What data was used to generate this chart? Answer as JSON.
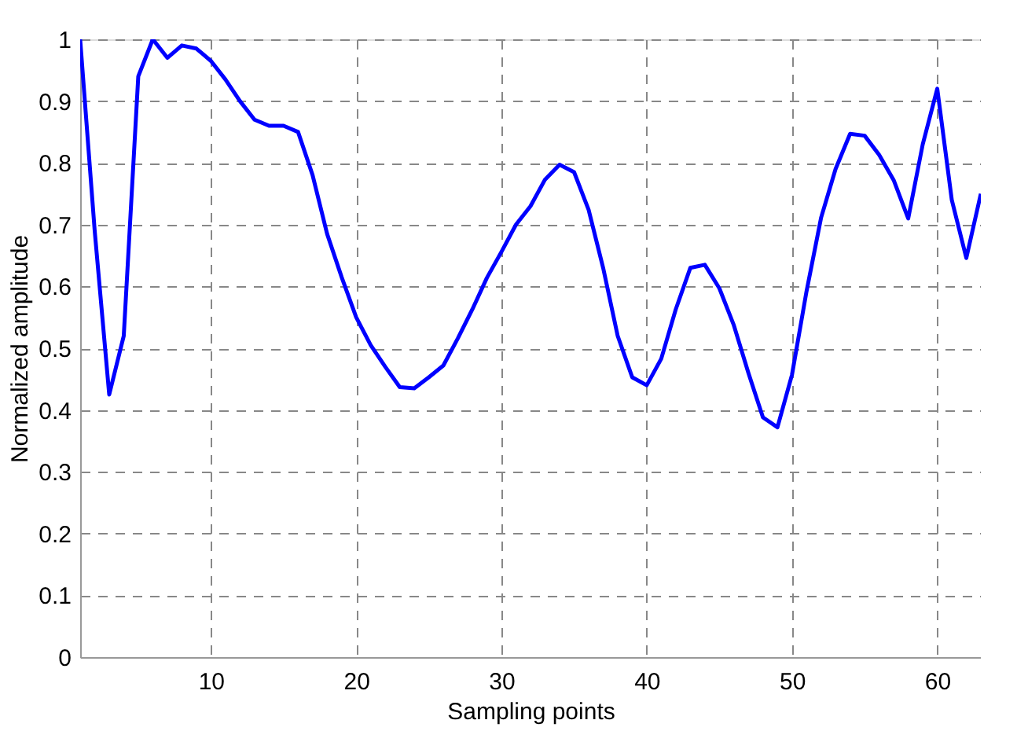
{
  "chart_data": {
    "type": "line",
    "xlabel": "Sampling points",
    "ylabel": "Normalized amplitude",
    "x": [
      1,
      2,
      3,
      4,
      5,
      6,
      7,
      8,
      9,
      10,
      11,
      12,
      13,
      14,
      15,
      16,
      17,
      18,
      19,
      20,
      21,
      22,
      23,
      24,
      25,
      26,
      27,
      28,
      29,
      30,
      31,
      32,
      33,
      34,
      35,
      36,
      37,
      38,
      39,
      40,
      41,
      42,
      43,
      44,
      45,
      46,
      47,
      48,
      49,
      50,
      51,
      52,
      53,
      54,
      55,
      56,
      57,
      58,
      59,
      60,
      61,
      62,
      63
    ],
    "series": [
      {
        "color": "#0000ff",
        "values": [
          1.0,
          0.69,
          0.425,
          0.52,
          0.94,
          1.0,
          0.97,
          0.99,
          0.985,
          0.965,
          0.935,
          0.9,
          0.87,
          0.86,
          0.86,
          0.85,
          0.78,
          0.685,
          0.615,
          0.55,
          0.505,
          0.47,
          0.437,
          0.435,
          0.453,
          0.472,
          0.516,
          0.563,
          0.614,
          0.656,
          0.7,
          0.73,
          0.773,
          0.797,
          0.785,
          0.724,
          0.63,
          0.52,
          0.453,
          0.44,
          0.483,
          0.563,
          0.63,
          0.635,
          0.597,
          0.537,
          0.46,
          0.388,
          0.372,
          0.457,
          0.592,
          0.711,
          0.79,
          0.847,
          0.844,
          0.813,
          0.772,
          0.71,
          0.83,
          0.92,
          0.74,
          0.646,
          0.75
        ]
      }
    ],
    "xlim": [
      1,
      63
    ],
    "xticks": [
      10,
      20,
      30,
      40,
      50,
      60
    ],
    "ylim": [
      0,
      1
    ],
    "yticks": [
      0,
      0.1,
      0.2,
      0.3,
      0.4,
      0.5,
      0.6,
      0.7,
      0.8,
      0.9,
      1
    ],
    "grid": true,
    "line_style": "solid",
    "marker": "none",
    "legend": false
  }
}
